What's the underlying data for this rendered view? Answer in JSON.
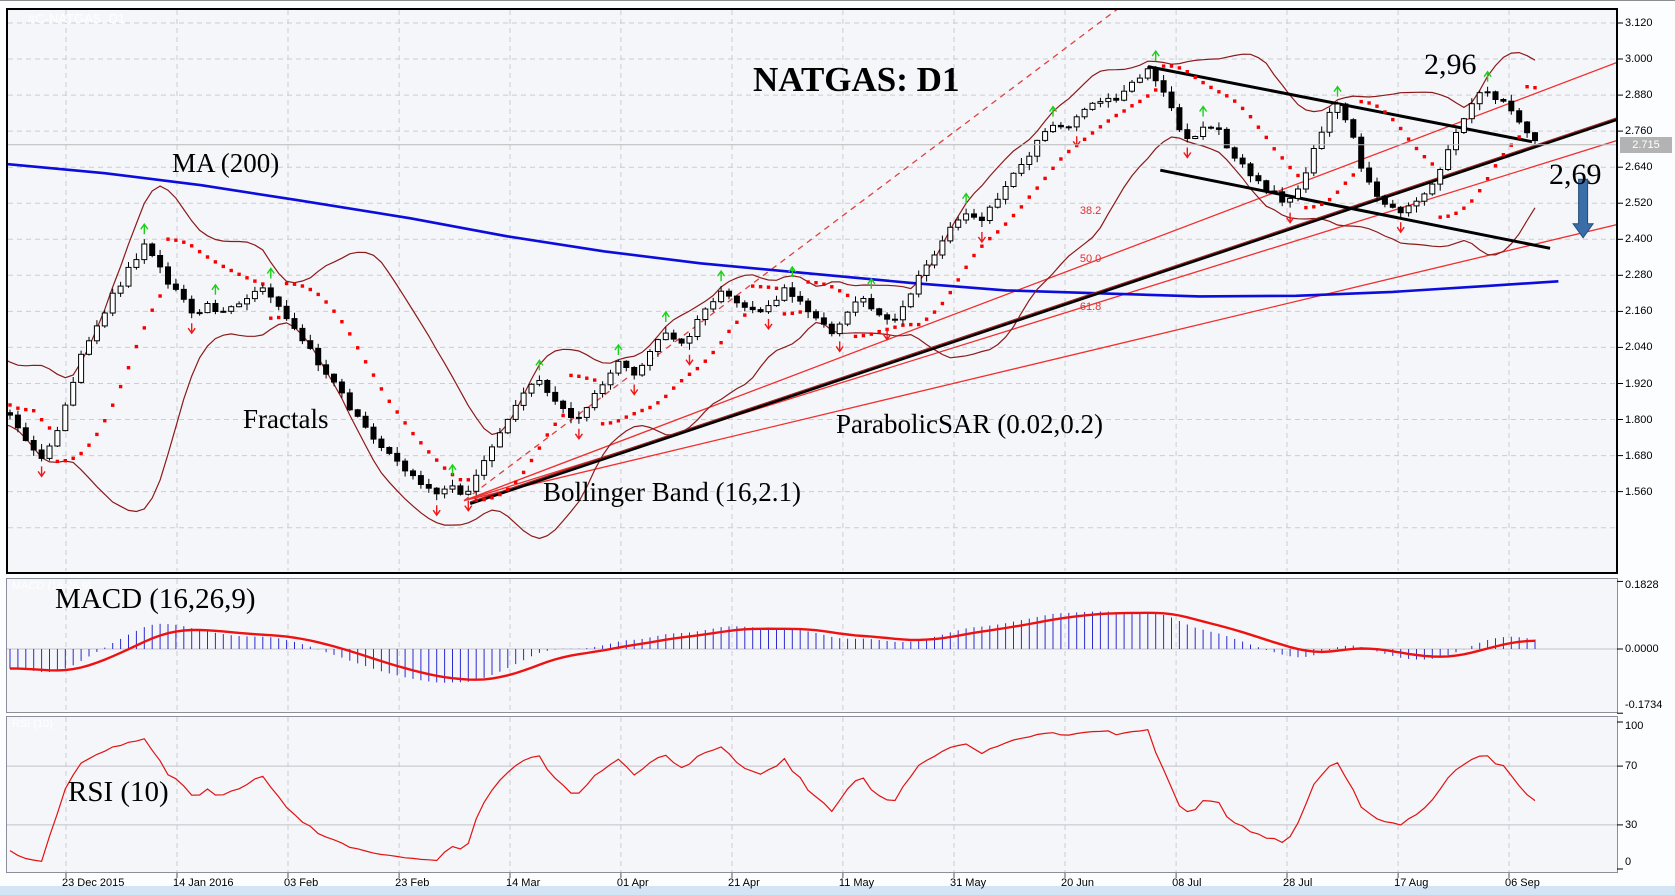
{
  "watermarks": {
    "main": "#C-NATGAS, D1",
    "macd": "MACD (16,26,9)",
    "rsi": "RSI (10)"
  },
  "labels": {
    "title": "NATGAS: D1",
    "ma": "MA (200)",
    "fractals": "Fractals",
    "bollinger": "Bollinger Band (16,2.1)",
    "sar": "ParabolicSAR (0.02,0.2)",
    "macd": "MACD (16,26,9)",
    "rsi": "RSI (10)",
    "swing_high": "2,96",
    "target": "2,69"
  },
  "colors": {
    "panel_bg": "#f5f6f9",
    "grid": "#ccccd2",
    "panel_border": "#8a8f99",
    "main_border": "#000000",
    "candle_up": "#ffffff",
    "candle_down": "#000000",
    "ma200": "#0c0cdc",
    "bollinger": "#8b1a1a",
    "sar": "#f80000",
    "fractal_up": "#19d119",
    "fractal_down": "#f01818",
    "fib_fan": "#f03030",
    "dashed_ray": "#e04040",
    "channel": "#000000",
    "trendline": "#2a0a0a",
    "macd_histogram": "#2b2bd0",
    "macd_signal": "#ee1111",
    "rsi_line": "#e21212",
    "arrow": "#3b6ea8",
    "arrow_border": "#1f4f7a",
    "price_pill_bg": "#b3b3b3",
    "current_price_line": "#b9b9b9",
    "bottom_strip": "#d3e4f5"
  },
  "price_axis": {
    "ticks": [
      "3.120",
      "3.000",
      "2.880",
      "2.760",
      "2.640",
      "2.520",
      "2.400",
      "2.280",
      "2.160",
      "2.040",
      "1.920",
      "1.800",
      "1.680",
      "1.560"
    ],
    "current": "2.715",
    "current_value": 2.715
  },
  "date_axis": {
    "labels": [
      "23 Dec 2015",
      "14 Jan 2016",
      "03 Feb",
      "23 Feb",
      "14 Mar",
      "01 Apr",
      "21 Apr",
      "11 May",
      "31 May",
      "20 Jun",
      "08 Jul",
      "28 Jul",
      "17 Aug",
      "06 Sep"
    ],
    "fracs": [
      0.036,
      0.105,
      0.1739,
      0.2429,
      0.3118,
      0.3807,
      0.4497,
      0.5186,
      0.5876,
      0.6565,
      0.7255,
      0.7944,
      0.8634,
      0.9323
    ]
  },
  "chart_data": [
    {
      "type": "candlestick",
      "title": "NATGAS: D1",
      "symbol": "NATGAS",
      "timeframe": "D1",
      "bars": 194,
      "y_axis": {
        "tick_values": [
          3.12,
          3.0,
          2.88,
          2.76,
          2.64,
          2.52,
          2.4,
          2.28,
          2.16,
          2.04,
          1.92,
          1.8,
          1.68,
          1.56
        ],
        "extra_grid": 1.44,
        "current_price": 2.715
      },
      "close_anchors": [
        [
          0.0012,
          1.81
        ],
        [
          0.0075,
          1.75
        ],
        [
          0.0149,
          1.7
        ],
        [
          0.0224,
          1.67
        ],
        [
          0.0298,
          1.76
        ],
        [
          0.0373,
          1.88
        ],
        [
          0.0447,
          2.0
        ],
        [
          0.0522,
          2.09
        ],
        [
          0.0596,
          2.16
        ],
        [
          0.0671,
          2.23
        ],
        [
          0.0758,
          2.31
        ],
        [
          0.0851,
          2.38
        ],
        [
          0.0925,
          2.32
        ],
        [
          0.1006,
          2.25
        ],
        [
          0.1081,
          2.2
        ],
        [
          0.1155,
          2.14
        ],
        [
          0.123,
          2.18
        ],
        [
          0.1317,
          2.14
        ],
        [
          0.1404,
          2.18
        ],
        [
          0.1491,
          2.21
        ],
        [
          0.1578,
          2.24
        ],
        [
          0.1665,
          2.19
        ],
        [
          0.1752,
          2.12
        ],
        [
          0.1845,
          2.05
        ],
        [
          0.1938,
          1.98
        ],
        [
          0.2031,
          1.91
        ],
        [
          0.2124,
          1.84
        ],
        [
          0.2217,
          1.77
        ],
        [
          0.2311,
          1.71
        ],
        [
          0.2404,
          1.66
        ],
        [
          0.2497,
          1.62
        ],
        [
          0.259,
          1.58
        ],
        [
          0.2683,
          1.56
        ],
        [
          0.2758,
          1.59
        ],
        [
          0.2832,
          1.54
        ],
        [
          0.2907,
          1.61
        ],
        [
          0.2994,
          1.7
        ],
        [
          0.3087,
          1.79
        ],
        [
          0.318,
          1.87
        ],
        [
          0.3273,
          1.93
        ],
        [
          0.3366,
          1.89
        ],
        [
          0.3441,
          1.83
        ],
        [
          0.3528,
          1.79
        ],
        [
          0.3615,
          1.86
        ],
        [
          0.3708,
          1.93
        ],
        [
          0.3801,
          1.99
        ],
        [
          0.3894,
          1.95
        ],
        [
          0.3988,
          2.03
        ],
        [
          0.4081,
          2.08
        ],
        [
          0.4174,
          2.04
        ],
        [
          0.4267,
          2.11
        ],
        [
          0.436,
          2.18
        ],
        [
          0.4453,
          2.23
        ],
        [
          0.4547,
          2.19
        ],
        [
          0.464,
          2.15
        ],
        [
          0.4733,
          2.19
        ],
        [
          0.4826,
          2.23
        ],
        [
          0.4919,
          2.19
        ],
        [
          0.5012,
          2.13
        ],
        [
          0.5106,
          2.09
        ],
        [
          0.5199,
          2.14
        ],
        [
          0.5292,
          2.21
        ],
        [
          0.5385,
          2.17
        ],
        [
          0.5478,
          2.12
        ],
        [
          0.5571,
          2.19
        ],
        [
          0.5665,
          2.28
        ],
        [
          0.5758,
          2.36
        ],
        [
          0.5851,
          2.43
        ],
        [
          0.5944,
          2.49
        ],
        [
          0.6037,
          2.45
        ],
        [
          0.613,
          2.53
        ],
        [
          0.6224,
          2.6
        ],
        [
          0.6317,
          2.67
        ],
        [
          0.641,
          2.73
        ],
        [
          0.6503,
          2.79
        ],
        [
          0.6596,
          2.77
        ],
        [
          0.6689,
          2.83
        ],
        [
          0.6783,
          2.87
        ],
        [
          0.6876,
          2.85
        ],
        [
          0.6969,
          2.91
        ],
        [
          0.7081,
          2.96
        ],
        [
          0.7143,
          2.92
        ],
        [
          0.7205,
          2.86
        ],
        [
          0.7267,
          2.78
        ],
        [
          0.7342,
          2.72
        ],
        [
          0.7416,
          2.76
        ],
        [
          0.7491,
          2.79
        ],
        [
          0.7565,
          2.72
        ],
        [
          0.764,
          2.66
        ],
        [
          0.7714,
          2.62
        ],
        [
          0.7789,
          2.58
        ],
        [
          0.7863,
          2.55
        ],
        [
          0.7938,
          2.52
        ],
        [
          0.8,
          2.55
        ],
        [
          0.8062,
          2.62
        ],
        [
          0.8124,
          2.72
        ],
        [
          0.8186,
          2.8
        ],
        [
          0.8248,
          2.86
        ],
        [
          0.8311,
          2.8
        ],
        [
          0.8373,
          2.7
        ],
        [
          0.8435,
          2.6
        ],
        [
          0.8509,
          2.53
        ],
        [
          0.8584,
          2.5
        ],
        [
          0.8658,
          2.48
        ],
        [
          0.8733,
          2.52
        ],
        [
          0.8807,
          2.56
        ],
        [
          0.8882,
          2.62
        ],
        [
          0.8957,
          2.72
        ],
        [
          0.9031,
          2.8
        ],
        [
          0.9106,
          2.86
        ],
        [
          0.918,
          2.9
        ],
        [
          0.9255,
          2.87
        ],
        [
          0.9329,
          2.83
        ],
        [
          0.9404,
          2.77
        ],
        [
          0.9491,
          2.715
        ]
      ],
      "indicators": {
        "ma200": {
          "label": "MA (200)",
          "anchors": [
            [
              0.0,
              2.65
            ],
            [
              0.06,
              2.62
            ],
            [
              0.12,
              2.58
            ],
            [
              0.18,
              2.53
            ],
            [
              0.25,
              2.47
            ],
            [
              0.31,
              2.41
            ],
            [
              0.37,
              2.36
            ],
            [
              0.43,
              2.32
            ],
            [
              0.5,
              2.285
            ],
            [
              0.56,
              2.255
            ],
            [
              0.62,
              2.23
            ],
            [
              0.68,
              2.22
            ],
            [
              0.74,
              2.21
            ],
            [
              0.8,
              2.212
            ],
            [
              0.86,
              2.225
            ],
            [
              0.92,
              2.245
            ],
            [
              0.963,
              2.26
            ]
          ]
        },
        "bollinger": {
          "label": "Bollinger Band (16,2.1)",
          "period": 16,
          "deviation": 2.1
        },
        "parabolic_sar": {
          "label": "ParabolicSAR (0.02,0.2)",
          "step": 0.02,
          "maximum": 0.2
        },
        "fractals": {
          "label": "Fractals"
        }
      },
      "overlays": {
        "fib_fan": {
          "origin": {
            "f": 0.2832,
            "p": 1.53
          },
          "end_f": 1.0,
          "lines": [
            {
              "label": "38.2",
              "end_p": 2.99,
              "label_f": 0.6658,
              "label_p": 2.49
            },
            {
              "label": "50.0",
              "end_p": 2.73,
              "label_f": 0.6658,
              "label_p": 2.33
            },
            {
              "label": "61.8",
              "end_p": 2.45,
              "label_f": 0.6658,
              "label_p": 2.17
            }
          ]
        },
        "dashed_ray": {
          "f1": 0.2832,
          "p1": 1.53,
          "f2": 0.695,
          "p2": 3.19
        },
        "trendline": {
          "f1": 0.287,
          "p1": 1.52,
          "f2": 1.0,
          "p2": 2.8
        },
        "channel": [
          {
            "f1": 0.7081,
            "p1": 2.975,
            "f2": 0.9466,
            "p2": 2.725
          },
          {
            "f1": 0.7157,
            "p1": 2.63,
            "f2": 0.9578,
            "p2": 2.37
          }
        ],
        "annotations": [
          {
            "text": "2,96",
            "near_price": 2.96
          },
          {
            "text": "2,69",
            "near_price": 2.69
          }
        ],
        "arrow": {
          "f": 0.9783,
          "p1": 2.6,
          "p2": 2.405
        }
      }
    },
    {
      "type": "bar",
      "name": "MACD (16,26,9)",
      "fast": 16,
      "slow": 26,
      "signal": 9,
      "y_ticks": [
        {
          "v": 0.1828,
          "label": "0.1828"
        },
        {
          "v": 0,
          "label": "0.0000"
        },
        {
          "v": -0.1734,
          "label": "-0.1734"
        }
      ]
    },
    {
      "type": "line",
      "name": "RSI (10)",
      "period": 10,
      "y_ticks": [
        {
          "v": 100,
          "label": "100"
        },
        {
          "v": 70,
          "label": "70"
        },
        {
          "v": 30,
          "label": "30"
        },
        {
          "v": 0,
          "label": "0"
        }
      ],
      "levels": [
        30,
        70
      ]
    }
  ]
}
